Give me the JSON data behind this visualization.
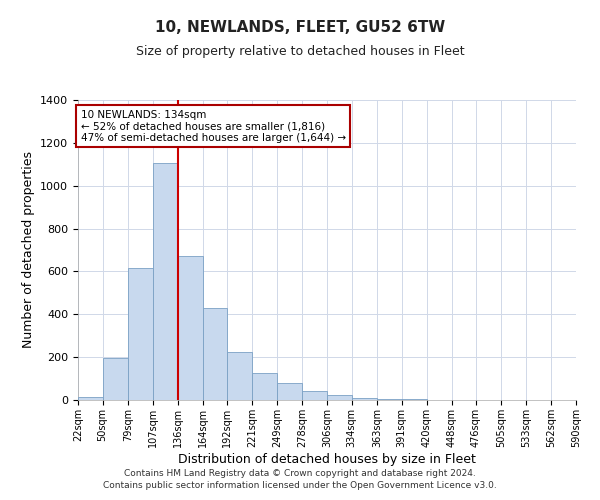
{
  "title": "10, NEWLANDS, FLEET, GU52 6TW",
  "subtitle": "Size of property relative to detached houses in Fleet",
  "xlabel": "Distribution of detached houses by size in Fleet",
  "ylabel": "Number of detached properties",
  "bar_color": "#c8d9ee",
  "bar_edge_color": "#7aa0c4",
  "bin_edges": [
    22,
    50,
    79,
    107,
    136,
    164,
    192,
    221,
    249,
    278,
    306,
    334,
    363,
    391,
    420,
    448,
    476,
    505,
    533,
    562,
    590
  ],
  "bin_labels": [
    "22sqm",
    "50sqm",
    "79sqm",
    "107sqm",
    "136sqm",
    "164sqm",
    "192sqm",
    "221sqm",
    "249sqm",
    "278sqm",
    "306sqm",
    "334sqm",
    "363sqm",
    "391sqm",
    "420sqm",
    "448sqm",
    "476sqm",
    "505sqm",
    "533sqm",
    "562sqm",
    "590sqm"
  ],
  "counts": [
    15,
    195,
    615,
    1105,
    670,
    430,
    225,
    125,
    80,
    40,
    25,
    10,
    5,
    3,
    0,
    0,
    0,
    0,
    0,
    0
  ],
  "property_line_x": 136,
  "ylim": [
    0,
    1400
  ],
  "yticks": [
    0,
    200,
    400,
    600,
    800,
    1000,
    1200,
    1400
  ],
  "annotation_line1": "10 NEWLANDS: 134sqm",
  "annotation_line2": "← 52% of detached houses are smaller (1,816)",
  "annotation_line3": "47% of semi-detached houses are larger (1,644) →",
  "annotation_box_color": "#ffffff",
  "annotation_box_edge": "#aa0000",
  "property_line_color": "#cc0000",
  "grid_color": "#d0d8e8",
  "footer_line1": "Contains HM Land Registry data © Crown copyright and database right 2024.",
  "footer_line2": "Contains public sector information licensed under the Open Government Licence v3.0."
}
